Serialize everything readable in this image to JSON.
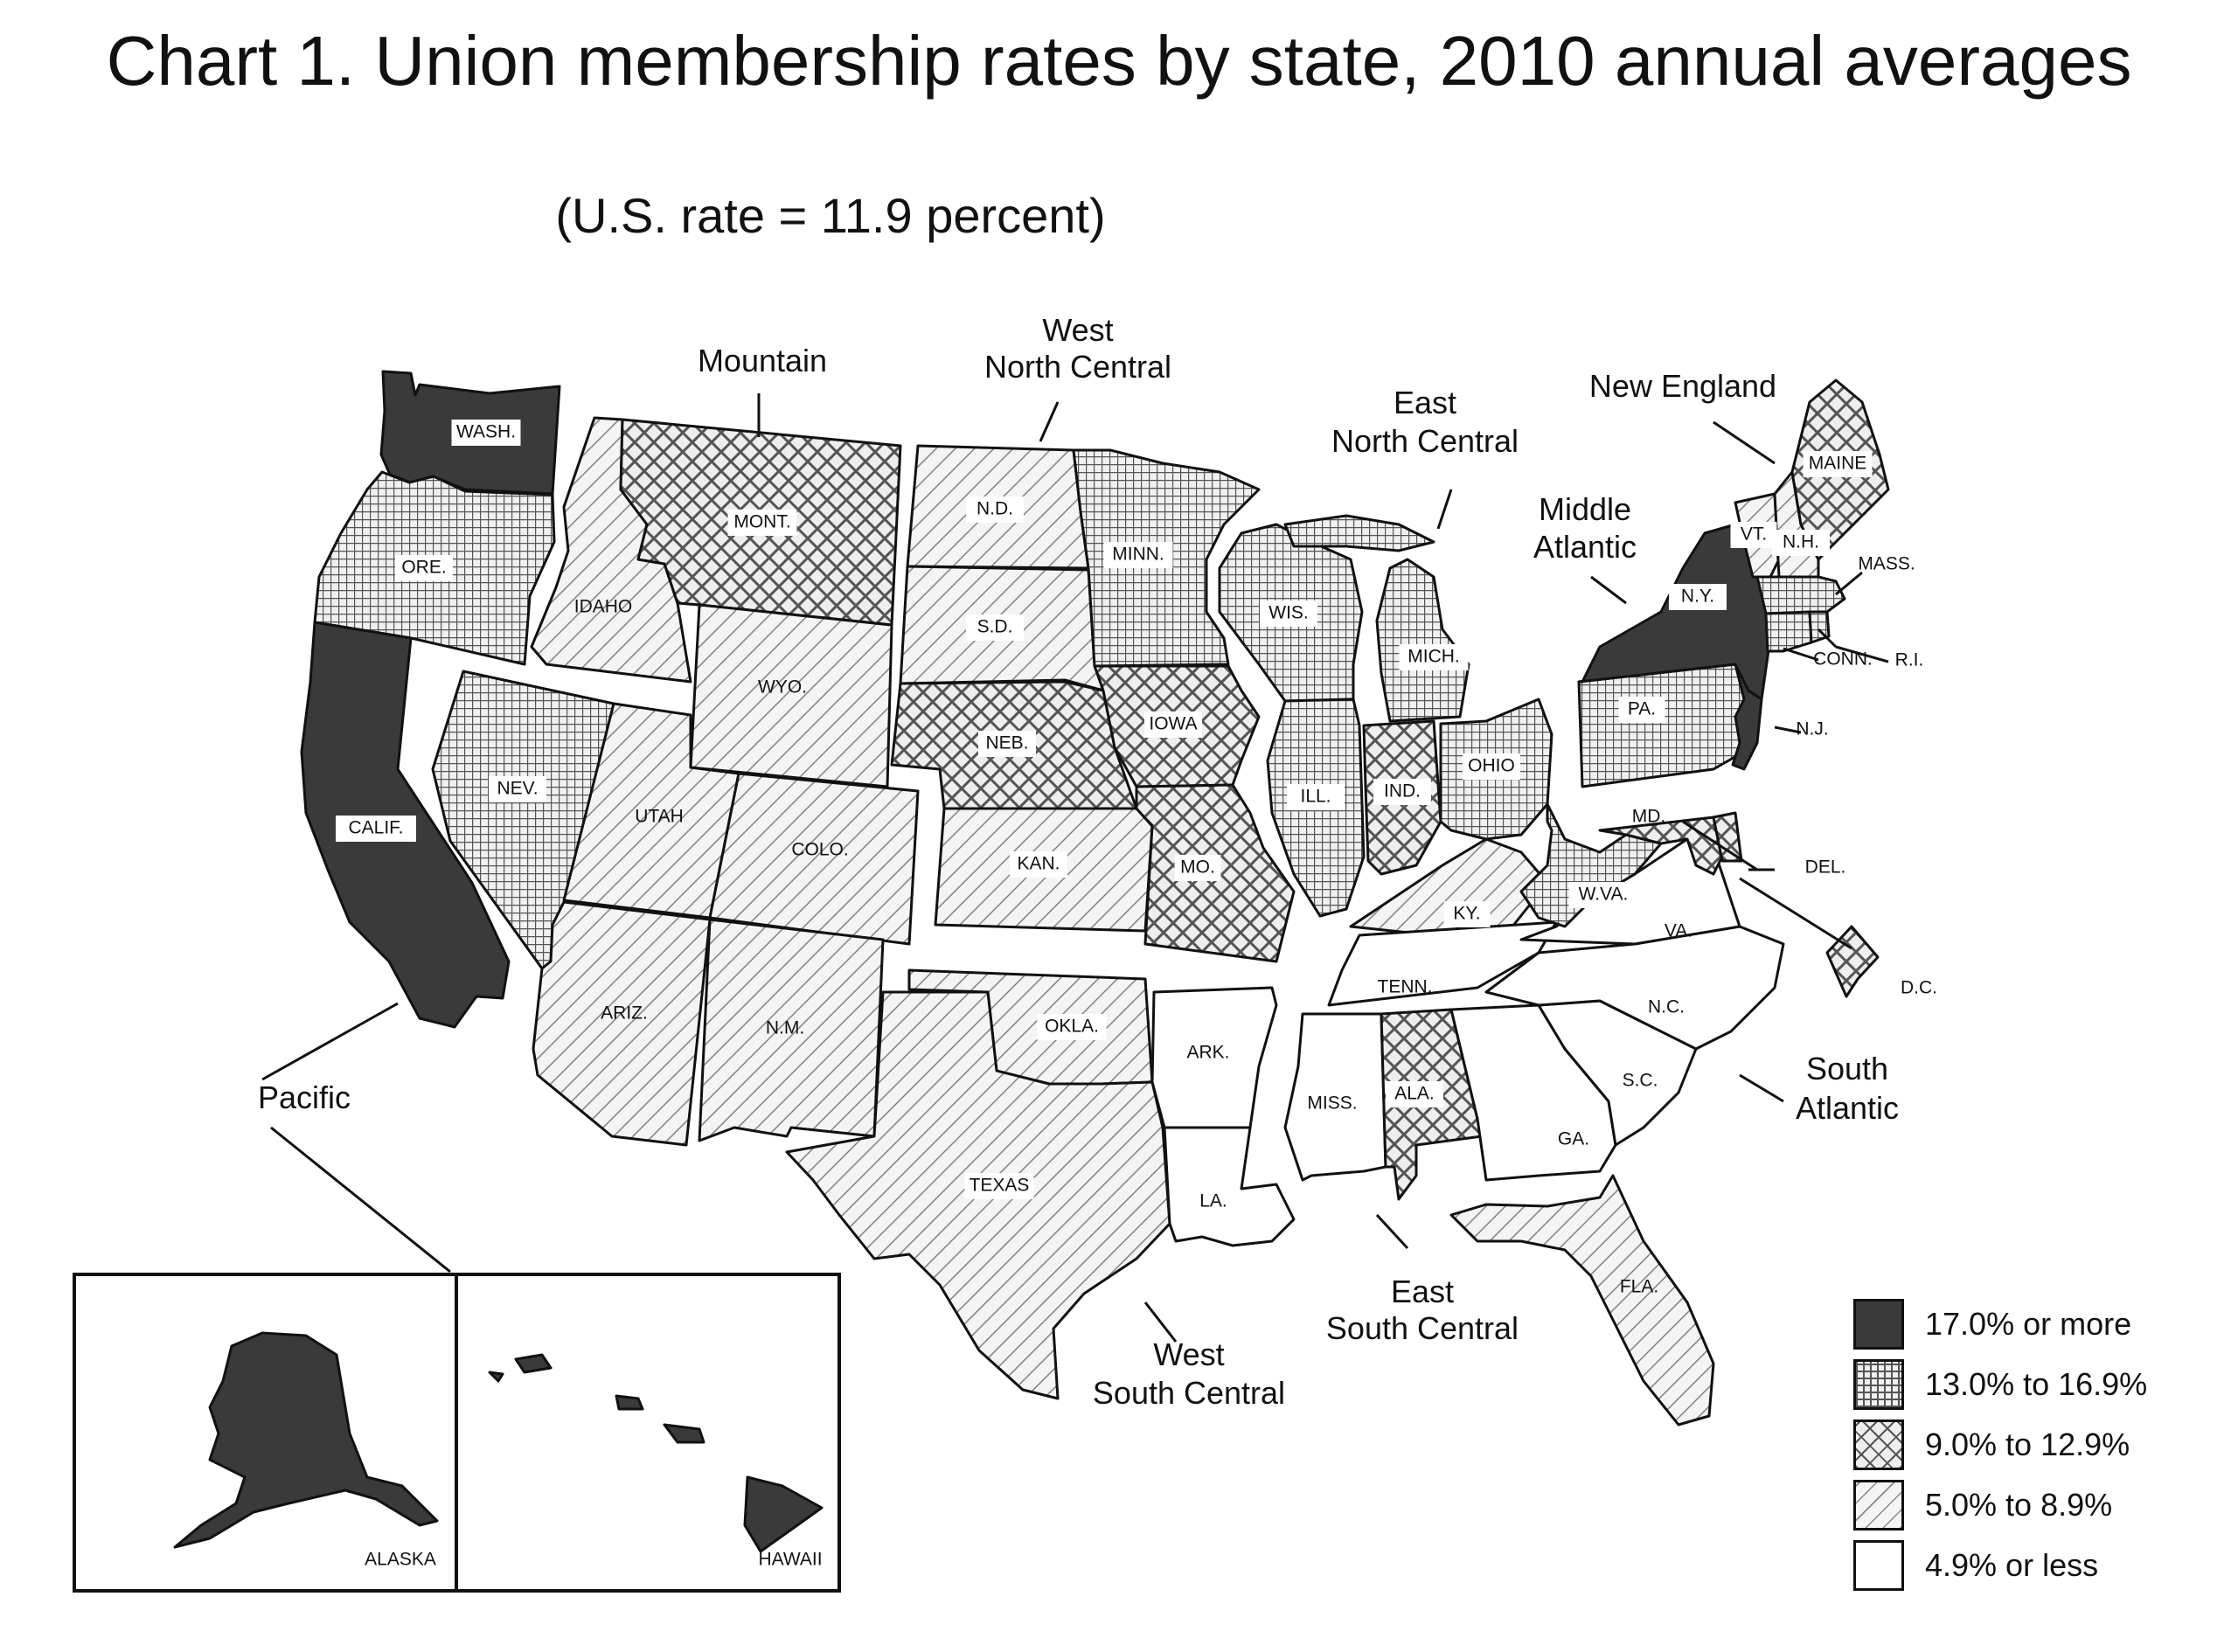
{
  "title": "Chart 1. Union membership rates by state, 2010 annual averages",
  "subtitle": "(U.S. rate = 11.9 percent)",
  "categories": [
    {
      "id": "c1",
      "label": "17.0% or more",
      "fill": "#3a3a3a",
      "pattern": "solid"
    },
    {
      "id": "c2",
      "label": "13.0% to 16.9%",
      "fill": "#8a8a8a",
      "pattern": "grid"
    },
    {
      "id": "c3",
      "label": "9.0% to 12.9%",
      "fill": "#cfcfcf",
      "pattern": "crosshatch"
    },
    {
      "id": "c4",
      "label": "5.0% to 8.9%",
      "fill": "#f2f2f2",
      "pattern": "diagonal"
    },
    {
      "id": "c5",
      "label": "4.9% or less",
      "fill": "#ffffff",
      "pattern": "none"
    }
  ],
  "regions": {
    "pacific": "Pacific",
    "mountain": "Mountain",
    "wnc_1": "West",
    "wnc_2": "North Central",
    "enc_1": "East",
    "enc_2": "North Central",
    "ne": "New England",
    "ma_1": "Middle",
    "ma_2": "Atlantic",
    "sa_1": "South",
    "sa_2": "Atlantic",
    "esc_1": "East",
    "esc_2": "South Central",
    "wsc_1": "West",
    "wsc_2": "South Central"
  },
  "states": [
    {
      "key": "wash",
      "label": "WASH.",
      "cat": "c1"
    },
    {
      "key": "ore",
      "label": "ORE.",
      "cat": "c2"
    },
    {
      "key": "calif",
      "label": "CALIF.",
      "cat": "c1"
    },
    {
      "key": "nev",
      "label": "NEV.",
      "cat": "c2"
    },
    {
      "key": "idaho",
      "label": "IDAHO",
      "cat": "c4"
    },
    {
      "key": "mont",
      "label": "MONT.",
      "cat": "c3"
    },
    {
      "key": "wyo",
      "label": "WYO.",
      "cat": "c4"
    },
    {
      "key": "utah",
      "label": "UTAH",
      "cat": "c4"
    },
    {
      "key": "colo",
      "label": "COLO.",
      "cat": "c4"
    },
    {
      "key": "ariz",
      "label": "ARIZ.",
      "cat": "c4"
    },
    {
      "key": "nm",
      "label": "N.M.",
      "cat": "c4"
    },
    {
      "key": "nd",
      "label": "N.D.",
      "cat": "c4"
    },
    {
      "key": "sd",
      "label": "S.D.",
      "cat": "c4"
    },
    {
      "key": "neb",
      "label": "NEB.",
      "cat": "c3"
    },
    {
      "key": "kan",
      "label": "KAN.",
      "cat": "c4"
    },
    {
      "key": "okla",
      "label": "OKLA.",
      "cat": "c4"
    },
    {
      "key": "texas",
      "label": "TEXAS",
      "cat": "c4"
    },
    {
      "key": "minn",
      "label": "MINN.",
      "cat": "c2"
    },
    {
      "key": "iowa",
      "label": "IOWA",
      "cat": "c3"
    },
    {
      "key": "mo",
      "label": "MO.",
      "cat": "c3"
    },
    {
      "key": "ark",
      "label": "ARK.",
      "cat": "c5"
    },
    {
      "key": "la",
      "label": "LA.",
      "cat": "c5"
    },
    {
      "key": "wis",
      "label": "WIS.",
      "cat": "c2"
    },
    {
      "key": "ill",
      "label": "ILL.",
      "cat": "c2"
    },
    {
      "key": "mich",
      "label": "MICH.",
      "cat": "c2"
    },
    {
      "key": "ind",
      "label": "IND.",
      "cat": "c3"
    },
    {
      "key": "ohio",
      "label": "OHIO",
      "cat": "c2"
    },
    {
      "key": "ky",
      "label": "KY.",
      "cat": "c4"
    },
    {
      "key": "tenn",
      "label": "TENN.",
      "cat": "c5"
    },
    {
      "key": "miss",
      "label": "MISS.",
      "cat": "c5"
    },
    {
      "key": "ala",
      "label": "ALA.",
      "cat": "c3"
    },
    {
      "key": "ga",
      "label": "GA.",
      "cat": "c5"
    },
    {
      "key": "fla",
      "label": "FLA.",
      "cat": "c4"
    },
    {
      "key": "sc",
      "label": "S.C.",
      "cat": "c5"
    },
    {
      "key": "nc",
      "label": "N.C.",
      "cat": "c5"
    },
    {
      "key": "va",
      "label": "VA.",
      "cat": "c5"
    },
    {
      "key": "wva",
      "label": "W.VA.",
      "cat": "c2"
    },
    {
      "key": "md",
      "label": "MD.",
      "cat": "c3"
    },
    {
      "key": "del",
      "label": "DEL.",
      "cat": "c3"
    },
    {
      "key": "dc",
      "label": "D.C.",
      "cat": "c3"
    },
    {
      "key": "pa",
      "label": "PA.",
      "cat": "c2"
    },
    {
      "key": "nj",
      "label": "N.J.",
      "cat": "c1"
    },
    {
      "key": "ny",
      "label": "N.Y.",
      "cat": "c1"
    },
    {
      "key": "conn",
      "label": "CONN.",
      "cat": "c2"
    },
    {
      "key": "ri",
      "label": "R.I.",
      "cat": "c2"
    },
    {
      "key": "mass",
      "label": "MASS.",
      "cat": "c2"
    },
    {
      "key": "vt",
      "label": "VT.",
      "cat": "c4"
    },
    {
      "key": "nh",
      "label": "N.H.",
      "cat": "c4"
    },
    {
      "key": "maine",
      "label": "MAINE",
      "cat": "c3"
    },
    {
      "key": "alaska",
      "label": "ALASKA",
      "cat": "c1"
    },
    {
      "key": "hawaii",
      "label": "HAWAII",
      "cat": "c1"
    }
  ]
}
